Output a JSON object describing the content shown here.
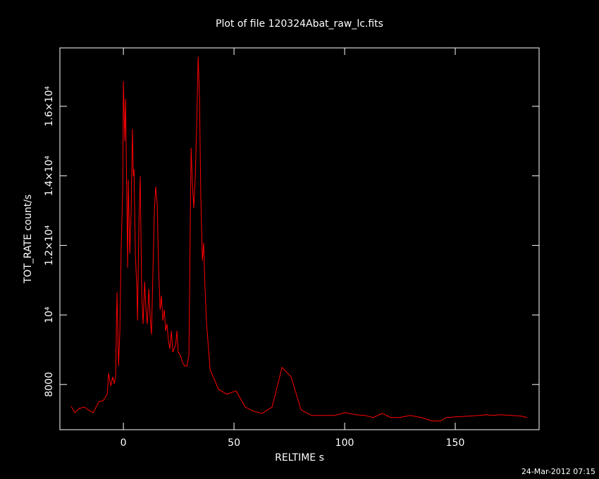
{
  "chart_data": {
    "type": "line",
    "title": "Plot of file 120324Abat_raw_lc.fits",
    "xlabel": "RELTIME  s",
    "ylabel": "TOT_RATE  count/s",
    "timestamp": "24-Mar-2012 07:15",
    "x": [
      -23.6,
      -22,
      -20,
      -17.5,
      -16,
      -13.7,
      -11,
      -9.2,
      -7.3,
      -6.7,
      -5.7,
      -4.8,
      -4.1,
      -3.5,
      -2.9,
      -2.2,
      -1.6,
      -1,
      -0.3,
      0,
      0.6,
      1,
      1.6,
      1.9,
      2.2,
      2.9,
      3.5,
      4.1,
      4.5,
      4.8,
      5.4,
      6.1,
      6.4,
      7,
      7.6,
      8.3,
      8.9,
      9.6,
      10.2,
      10.8,
      11.5,
      12.1,
      12.7,
      13.4,
      14,
      14.6,
      15.3,
      15.9,
      16.6,
      17.2,
      17.8,
      18.5,
      19.1,
      19.7,
      20.4,
      21,
      21.7,
      22.3,
      22.9,
      23.6,
      24.2,
      24.8,
      25.8,
      26.8,
      27.7,
      28.7,
      29.6,
      30.6,
      31.2,
      31.8,
      32.5,
      33.1,
      33.8,
      34.4,
      35,
      35.7,
      36.3,
      36.9,
      37.6,
      39.2,
      43,
      46.8,
      50.9,
      55.1,
      58.9,
      62.7,
      67.2,
      71.7,
      75.8,
      80.3,
      85,
      90.8,
      95.5,
      100.3,
      105.1,
      109.2,
      113,
      116.9,
      121,
      124.8,
      129.6,
      134.7,
      139.5,
      143.3,
      145.9,
      150.6,
      156,
      160.8,
      164,
      167.2,
      170.4,
      175.2,
      179.9,
      182.5
    ],
    "series": [
      {
        "name": "TOT_RATE",
        "color": "#ff0000",
        "values": [
          7372,
          7190,
          7310,
          7350,
          7270,
          7190,
          7510,
          7530,
          7720,
          8320,
          7960,
          8220,
          8020,
          8280,
          10650,
          8530,
          9540,
          11970,
          13590,
          16720,
          15000,
          16210,
          12980,
          11360,
          13890,
          11760,
          12980,
          15350,
          13990,
          14190,
          11760,
          10750,
          9840,
          12570,
          13990,
          10550,
          9740,
          10960,
          10150,
          9740,
          10750,
          9940,
          9440,
          11360,
          12980,
          13690,
          13180,
          11360,
          10150,
          10550,
          9840,
          10150,
          9540,
          9740,
          9230,
          9030,
          9540,
          8930,
          9030,
          9130,
          9540,
          8930,
          8830,
          8630,
          8530,
          8530,
          8830,
          14800,
          13790,
          13080,
          13990,
          15410,
          17430,
          16220,
          13380,
          11560,
          12070,
          10750,
          9740,
          8430,
          7860,
          7720,
          7820,
          7350,
          7230,
          7170,
          7350,
          8490,
          8220,
          7270,
          7110,
          7110,
          7110,
          7190,
          7130,
          7110,
          7050,
          7170,
          7050,
          7050,
          7110,
          7050,
          6950,
          6950,
          7050,
          7070,
          7090,
          7110,
          7130,
          7110,
          7130,
          7110,
          7090,
          7050
        ]
      }
    ],
    "xlim": [
      -28.7,
      187.9
    ],
    "ylim": [
      6700,
      17680
    ],
    "xticks": [
      0,
      50,
      100,
      150
    ],
    "yticks": [
      8000,
      {
        "value": 10000,
        "label": "10⁴"
      },
      {
        "value": 12000,
        "label": "1.2×10⁴"
      },
      {
        "value": 14000,
        "label": "1.4×10⁴"
      },
      {
        "value": 16000,
        "label": "1.6×10⁴"
      }
    ],
    "grid": false
  }
}
